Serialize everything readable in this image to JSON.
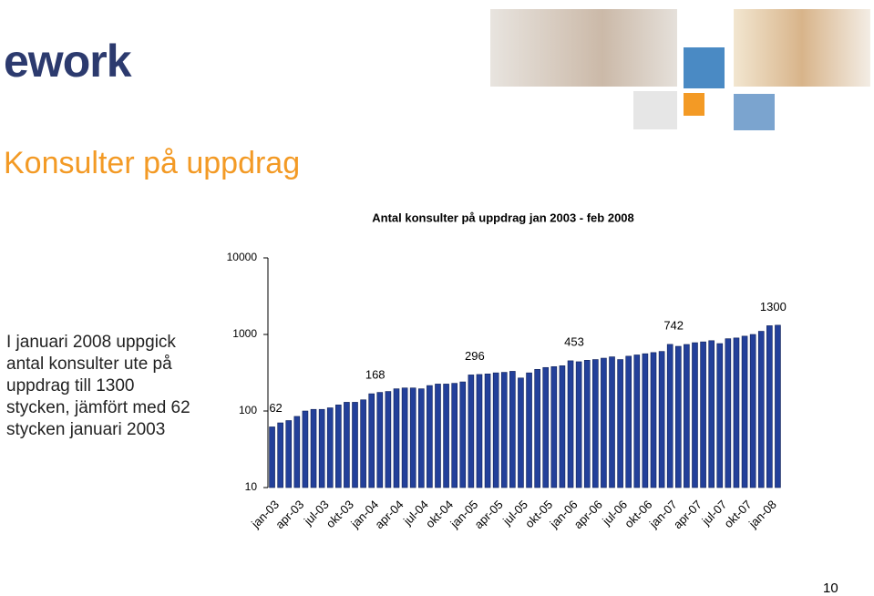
{
  "logo": "ework",
  "heading": "Konsulter på uppdrag",
  "body_lines": [
    "I januari 2008 uppgick",
    "antal konsulter ute på",
    "uppdrag till 1300",
    "stycken, jämfört med 62",
    "stycken januari 2003"
  ],
  "page_number": "10",
  "chart_data": {
    "type": "bar",
    "title": "Antal konsulter på uppdrag jan 2003 - feb 2008",
    "categories": [
      "jan-03",
      null,
      null,
      "apr-03",
      null,
      null,
      "jul-03",
      null,
      null,
      "okt-03",
      null,
      null,
      "jan-04",
      null,
      null,
      "apr-04",
      null,
      null,
      "jul-04",
      null,
      null,
      "okt-04",
      null,
      null,
      "jan-05",
      null,
      null,
      "apr-05",
      null,
      null,
      "jul-05",
      null,
      null,
      "okt-05",
      null,
      null,
      "jan-06",
      null,
      null,
      "apr-06",
      null,
      null,
      "jul-06",
      null,
      null,
      "okt-06",
      null,
      null,
      "jan-07",
      null,
      null,
      "apr-07",
      null,
      null,
      "jul-07",
      null,
      null,
      "okt-07",
      null,
      null,
      "jan-08",
      null
    ],
    "values": [
      62,
      70,
      75,
      85,
      100,
      105,
      105,
      110,
      120,
      130,
      130,
      140,
      168,
      175,
      180,
      195,
      200,
      200,
      195,
      215,
      225,
      225,
      230,
      240,
      296,
      300,
      305,
      315,
      320,
      330,
      270,
      315,
      350,
      370,
      380,
      390,
      453,
      440,
      460,
      470,
      490,
      510,
      470,
      520,
      540,
      560,
      580,
      600,
      742,
      700,
      740,
      780,
      800,
      830,
      760,
      880,
      900,
      950,
      1000,
      1100,
      1300,
      1320
    ],
    "value_labels": [
      "62",
      null,
      null,
      null,
      null,
      null,
      null,
      null,
      null,
      null,
      null,
      null,
      "168",
      null,
      null,
      null,
      null,
      null,
      null,
      null,
      null,
      null,
      null,
      null,
      "296",
      null,
      null,
      null,
      null,
      null,
      null,
      null,
      null,
      null,
      null,
      null,
      "453",
      null,
      null,
      null,
      null,
      null,
      null,
      null,
      null,
      null,
      null,
      null,
      "742",
      null,
      null,
      null,
      null,
      null,
      null,
      null,
      null,
      null,
      null,
      null,
      "1300",
      null
    ],
    "color": "#23409a",
    "log_scale": true,
    "ylim": [
      10,
      10000
    ],
    "yticks": [
      10,
      100,
      1000,
      10000
    ]
  }
}
